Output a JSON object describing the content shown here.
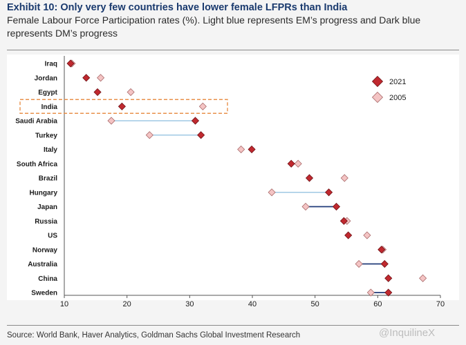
{
  "header": {
    "title": "Exhibit 10: Only very few countries have lower female LFPRs than India",
    "subtitle": "Female Labour Force Participation rates (%). Light blue represents EM’s progress and Dark blue represents DM’s progress"
  },
  "footer": {
    "source": "Source: World Bank, Haver Analytics, Goldman Sachs Global Investment Research",
    "watermark": "@InquilineX"
  },
  "colors": {
    "marker_2021": "#c0292f",
    "marker_2005": "#f4c4c4",
    "em_line": "#9fc8e3",
    "dm_line": "#1f3a78",
    "highlight_box": "#e8904a"
  },
  "chart_data": {
    "type": "scatter",
    "categories": [
      "Iraq",
      "Jordan",
      "Egypt",
      "India",
      "Saudi Arabia",
      "Turkey",
      "Italy",
      "South Africa",
      "Brazil",
      "Hungary",
      "Japan",
      "Russia",
      "US",
      "Norway",
      "Australia",
      "China",
      "Sweden"
    ],
    "series": [
      {
        "name": "2021",
        "values": [
          11,
          13.5,
          15.3,
          19.2,
          30.9,
          31.8,
          39.9,
          46.2,
          49.1,
          52.2,
          53.4,
          54.6,
          55.3,
          60.6,
          61.1,
          61.7,
          61.7
        ]
      },
      {
        "name": "2005",
        "values": [
          11.2,
          15.8,
          20.6,
          32.1,
          17.5,
          23.6,
          38.2,
          47.3,
          54.7,
          43.1,
          48.5,
          55.1,
          58.3,
          60.8,
          57.0,
          67.2,
          58.9
        ]
      }
    ],
    "group": [
      "EM",
      "EM",
      "EM",
      "EM",
      "EM",
      "EM",
      "DM",
      "EM",
      "EM",
      "EM",
      "DM",
      "EM",
      "DM",
      "DM",
      "DM",
      "EM",
      "DM"
    ],
    "connectors": [
      "Saudi Arabia",
      "Turkey",
      "Hungary",
      "Japan",
      "Australia",
      "Sweden"
    ],
    "highlighted": "India",
    "xlim": [
      10,
      70
    ],
    "xticks": [
      10,
      20,
      30,
      40,
      50,
      60,
      70
    ],
    "legend_position": "top-right"
  }
}
